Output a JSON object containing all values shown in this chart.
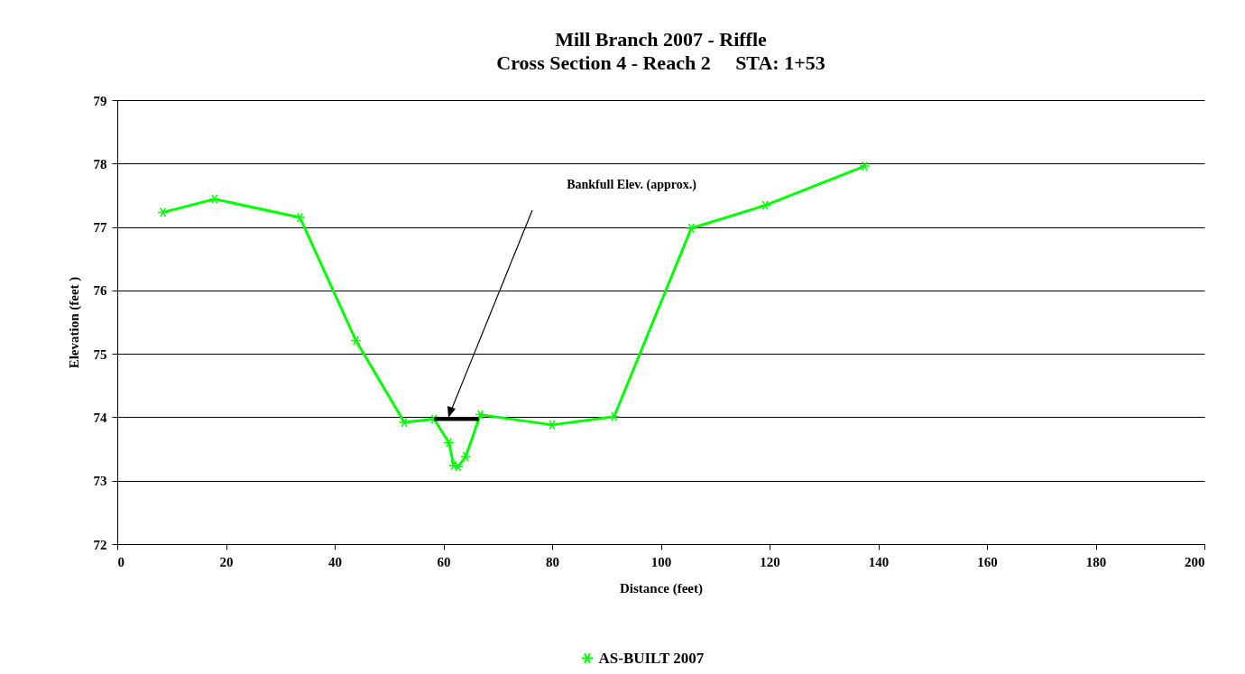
{
  "chart_data": {
    "type": "line",
    "title": "Mill Branch 2007 - Riffle",
    "subtitle": "Cross Section 4 - Reach 2     STA: 1+53",
    "xlabel": "Distance (feet)",
    "ylabel": "Elevation (feet )",
    "xlim": [
      0,
      200
    ],
    "xticks": [
      0,
      20,
      40,
      60,
      80,
      100,
      120,
      140,
      160,
      180,
      200
    ],
    "ylim": [
      72,
      79
    ],
    "yticks": [
      72,
      73,
      74,
      75,
      76,
      77,
      78,
      79
    ],
    "grid": "y",
    "legend": "bottom",
    "marker": "cross",
    "series": [
      {
        "name": "AS-BUILT 2007",
        "color": "#00ff00",
        "x": [
          8.4,
          17.9,
          33.6,
          43.9,
          52.8,
          58.3,
          61.0,
          61.9,
          62.7,
          64.1,
          66.8,
          80.0,
          91.4,
          105.6,
          119.2,
          137.5
        ],
        "values": [
          77.23,
          77.44,
          77.15,
          75.21,
          73.92,
          73.97,
          73.6,
          73.24,
          73.22,
          73.38,
          74.04,
          73.88,
          74.01,
          76.98,
          77.34,
          77.96
        ]
      },
      {
        "type": "line",
        "color": "#000000",
        "marker": "none",
        "x": [
          58.3,
          66.5
        ],
        "values": [
          73.97,
          73.97
        ]
      }
    ],
    "annotations": [
      "Bankfull Elev. (approx.)"
    ]
  }
}
